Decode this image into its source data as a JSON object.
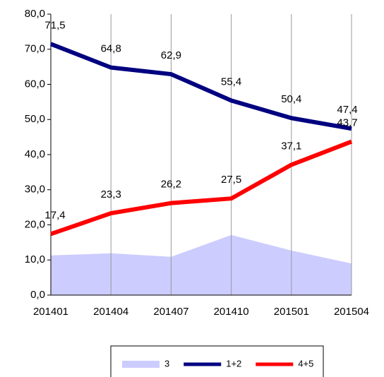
{
  "chart_data": {
    "type": "line",
    "categories": [
      "201401",
      "201404",
      "201407",
      "201410",
      "201501",
      "201504"
    ],
    "series": [
      {
        "name": "3",
        "color": "#ccccff",
        "kind": "area",
        "values": [
          11.3,
          11.9,
          10.9,
          17.1,
          12.7,
          9.0
        ]
      },
      {
        "name": "1+2",
        "color": "#000080",
        "values": [
          71.5,
          64.8,
          62.9,
          55.4,
          50.4,
          47.4
        ],
        "value_labels": [
          "71,5",
          "64,8",
          "62,9",
          "55,4",
          "50,4",
          "47,4"
        ]
      },
      {
        "name": "4+5",
        "color": "#ff0000",
        "values": [
          17.4,
          23.3,
          26.2,
          27.5,
          37.1,
          43.7
        ],
        "value_labels": [
          "17,4",
          "23,3",
          "26,2",
          "27,5",
          "37,1",
          "43,7"
        ]
      }
    ],
    "ylim": [
      0,
      80
    ],
    "yticks": [
      {
        "value": 0,
        "label": "0,0"
      },
      {
        "value": 10,
        "label": "10,0"
      },
      {
        "value": 20,
        "label": "20,0"
      },
      {
        "value": 30,
        "label": "30,0"
      },
      {
        "value": 40,
        "label": "40,0"
      },
      {
        "value": 50,
        "label": "50,0"
      },
      {
        "value": 60,
        "label": "60,0"
      },
      {
        "value": 70,
        "label": "70,0"
      },
      {
        "value": 80,
        "label": "80,0"
      }
    ],
    "grid": "x"
  }
}
